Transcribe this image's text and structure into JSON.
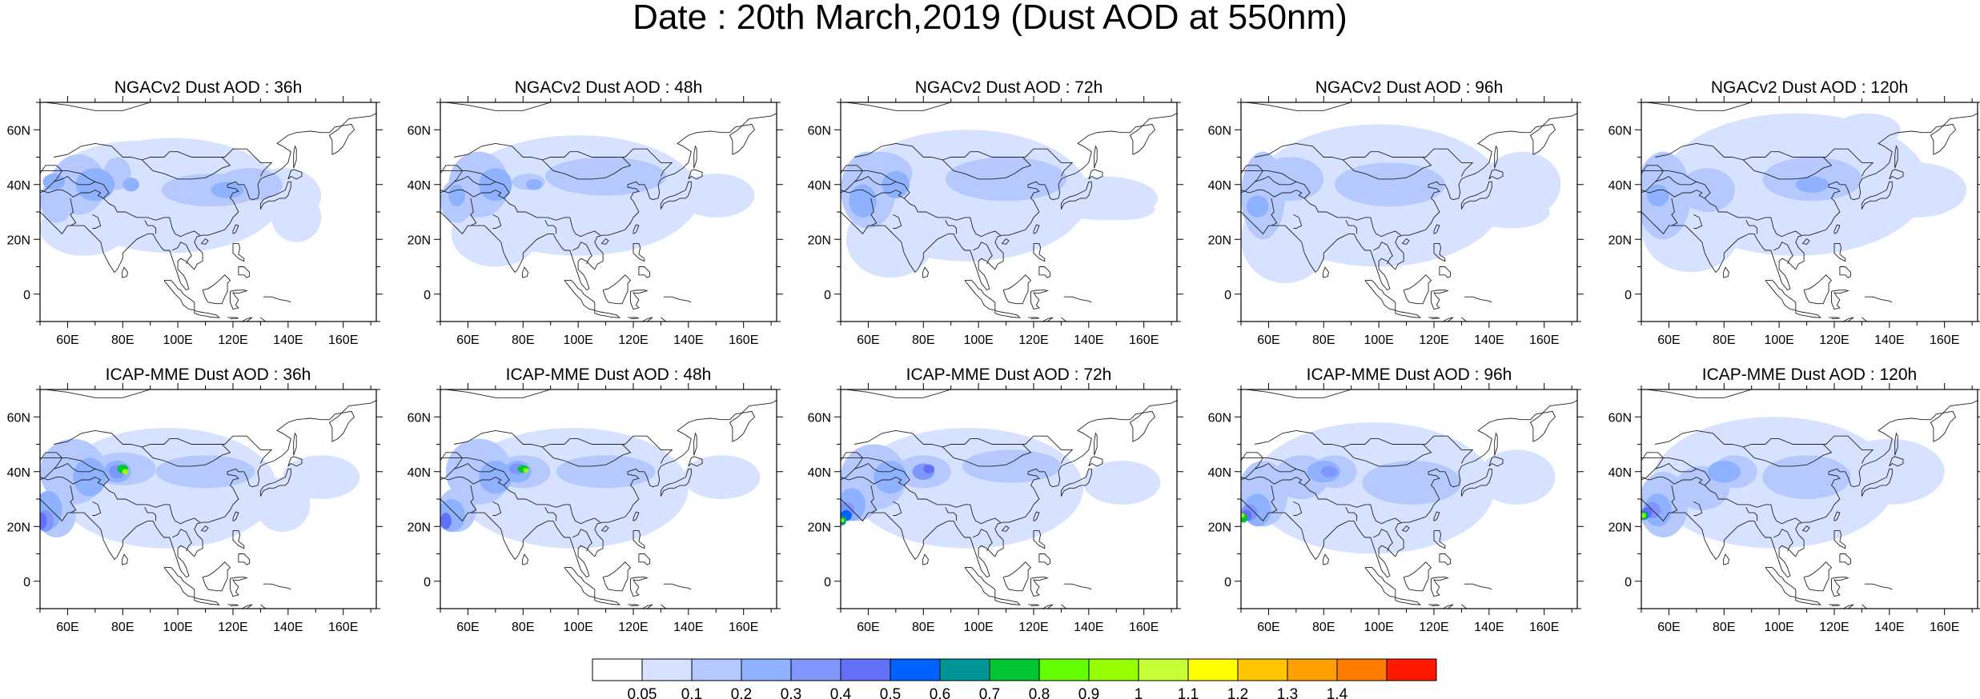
{
  "title": "Date : 20th March,2019 (Dust AOD at 550nm)",
  "rows": [
    {
      "model": "NGACv2",
      "panels": [
        {
          "title": "NGACv2 Dust AOD : 36h",
          "lead_hours": 36
        },
        {
          "title": "NGACv2 Dust AOD : 48h",
          "lead_hours": 48
        },
        {
          "title": "NGACv2 Dust AOD : 72h",
          "lead_hours": 72
        },
        {
          "title": "NGACv2 Dust AOD : 96h",
          "lead_hours": 96
        },
        {
          "title": "NGACv2 Dust AOD : 120h",
          "lead_hours": 120
        }
      ]
    },
    {
      "model": "ICAP-MME",
      "panels": [
        {
          "title": "ICAP-MME Dust AOD : 36h",
          "lead_hours": 36
        },
        {
          "title": "ICAP-MME Dust AOD : 48h",
          "lead_hours": 48
        },
        {
          "title": "ICAP-MME Dust AOD : 72h",
          "lead_hours": 72
        },
        {
          "title": "ICAP-MME Dust AOD : 96h",
          "lead_hours": 96
        },
        {
          "title": "ICAP-MME Dust AOD : 120h",
          "lead_hours": 120
        }
      ]
    }
  ],
  "map_extent": {
    "lon": [
      50,
      172
    ],
    "lat": [
      -10,
      70
    ]
  },
  "x_ticks": [
    "60E",
    "80E",
    "100E",
    "120E",
    "140E",
    "160E"
  ],
  "y_ticks": [
    "0",
    "20N",
    "40N",
    "60N"
  ],
  "colorbar": {
    "levels": [
      "0.05",
      "0.1",
      "0.2",
      "0.3",
      "0.4",
      "0.5",
      "0.6",
      "0.7",
      "0.8",
      "0.9",
      "1",
      "1.1",
      "1.2",
      "1.3",
      "1.4"
    ],
    "colors": [
      "#ffffff",
      "#d6e2ff",
      "#b5c9ff",
      "#8eb2ff",
      "#7f96ff",
      "#6370f8",
      "#0063ff",
      "#009696",
      "#00c633",
      "#63ff00",
      "#96ff00",
      "#c6ff33",
      "#ffff00",
      "#ffc600",
      "#ffa000",
      "#ff7c00",
      "#ff1900"
    ]
  },
  "colors": {
    "land_outline": "#222222",
    "frame": "#000000"
  }
}
